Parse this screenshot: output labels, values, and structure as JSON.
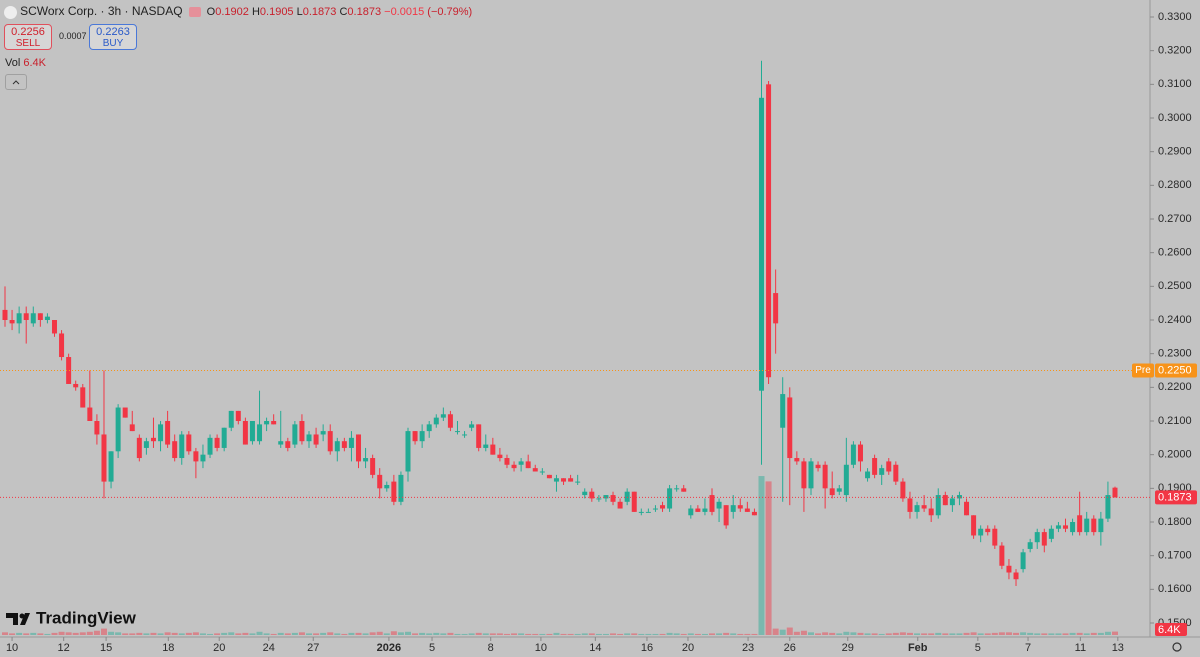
{
  "chart_data": {
    "type": "candlestick",
    "title": "SCWorx Corp. · 3h · NASDAQ",
    "ohlc_header": [
      {
        "label": "O",
        "value": 0.1902
      },
      {
        "label": "H",
        "value": 0.1905
      },
      {
        "label": "L",
        "value": 0.1873
      },
      {
        "label": "C",
        "value": 0.1873
      }
    ],
    "change": {
      "value": -0.0015,
      "label": "−0.0015"
    },
    "change_pct": {
      "value": -0.79,
      "label": "(−0.79%)"
    },
    "sell": {
      "value": 0.2256,
      "label": "SELL"
    },
    "spread": 0.0007,
    "buy": {
      "value": 0.2263,
      "label": "BUY"
    },
    "up_color": "#22ab94",
    "down_color": "#f23645",
    "candles": [
      [
        0.243,
        0.25,
        0.238,
        0.24
      ],
      [
        0.24,
        0.243,
        0.237,
        0.239
      ],
      [
        0.239,
        0.244,
        0.236,
        0.242
      ],
      [
        0.242,
        0.244,
        0.233,
        0.24
      ],
      [
        0.239,
        0.244,
        0.238,
        0.242
      ],
      [
        0.242,
        0.242,
        0.238,
        0.24
      ],
      [
        0.24,
        0.242,
        0.239,
        0.241
      ],
      [
        0.24,
        0.24,
        0.235,
        0.236
      ],
      [
        0.236,
        0.237,
        0.228,
        0.229
      ],
      [
        0.229,
        0.23,
        0.221,
        0.221
      ],
      [
        0.221,
        0.222,
        0.219,
        0.22
      ],
      [
        0.22,
        0.221,
        0.214,
        0.214
      ],
      [
        0.214,
        0.225,
        0.21,
        0.21
      ],
      [
        0.21,
        0.212,
        0.203,
        0.206
      ],
      [
        0.206,
        0.225,
        0.187,
        0.192
      ],
      [
        0.192,
        0.201,
        0.19,
        0.201
      ],
      [
        0.201,
        0.215,
        0.199,
        0.214
      ],
      [
        0.214,
        0.214,
        0.211,
        0.211
      ],
      [
        0.209,
        0.213,
        0.207,
        0.207
      ],
      [
        0.205,
        0.206,
        0.198,
        0.199
      ],
      [
        0.202,
        0.205,
        0.2,
        0.204
      ],
      [
        0.205,
        0.211,
        0.202,
        0.204
      ],
      [
        0.204,
        0.21,
        0.201,
        0.209
      ],
      [
        0.21,
        0.213,
        0.202,
        0.203
      ],
      [
        0.204,
        0.206,
        0.198,
        0.199
      ],
      [
        0.199,
        0.207,
        0.197,
        0.206
      ],
      [
        0.206,
        0.207,
        0.2,
        0.201
      ],
      [
        0.201,
        0.202,
        0.193,
        0.198
      ],
      [
        0.198,
        0.203,
        0.196,
        0.2
      ],
      [
        0.2,
        0.206,
        0.199,
        0.205
      ],
      [
        0.205,
        0.206,
        0.201,
        0.202
      ],
      [
        0.202,
        0.208,
        0.201,
        0.208
      ],
      [
        0.208,
        0.213,
        0.207,
        0.213
      ],
      [
        0.213,
        0.213,
        0.209,
        0.21
      ],
      [
        0.21,
        0.211,
        0.203,
        0.203
      ],
      [
        0.204,
        0.21,
        0.203,
        0.21
      ],
      [
        0.204,
        0.219,
        0.203,
        0.209
      ],
      [
        0.209,
        0.211,
        0.207,
        0.21
      ],
      [
        0.21,
        0.212,
        0.209,
        0.209
      ],
      [
        0.203,
        0.213,
        0.202,
        0.204
      ],
      [
        0.204,
        0.205,
        0.201,
        0.202
      ],
      [
        0.203,
        0.21,
        0.202,
        0.209
      ],
      [
        0.21,
        0.212,
        0.203,
        0.204
      ],
      [
        0.204,
        0.207,
        0.202,
        0.206
      ],
      [
        0.206,
        0.208,
        0.202,
        0.203
      ],
      [
        0.206,
        0.209,
        0.204,
        0.207
      ],
      [
        0.207,
        0.209,
        0.2,
        0.201
      ],
      [
        0.201,
        0.205,
        0.198,
        0.204
      ],
      [
        0.204,
        0.205,
        0.201,
        0.202
      ],
      [
        0.202,
        0.207,
        0.198,
        0.205
      ],
      [
        0.206,
        0.206,
        0.196,
        0.198
      ],
      [
        0.198,
        0.202,
        0.196,
        0.199
      ],
      [
        0.199,
        0.2,
        0.193,
        0.194
      ],
      [
        0.194,
        0.196,
        0.187,
        0.19
      ],
      [
        0.19,
        0.192,
        0.189,
        0.191
      ],
      [
        0.192,
        0.194,
        0.185,
        0.186
      ],
      [
        0.186,
        0.195,
        0.185,
        0.194
      ],
      [
        0.195,
        0.208,
        0.192,
        0.207
      ],
      [
        0.207,
        0.207,
        0.203,
        0.204
      ],
      [
        0.204,
        0.209,
        0.202,
        0.207
      ],
      [
        0.207,
        0.21,
        0.205,
        0.209
      ],
      [
        0.209,
        0.212,
        0.208,
        0.211
      ],
      [
        0.211,
        0.214,
        0.21,
        0.212
      ],
      [
        0.212,
        0.213,
        0.207,
        0.208
      ],
      [
        0.207,
        0.21,
        0.206,
        0.207
      ],
      [
        0.206,
        0.207,
        0.205,
        0.206
      ],
      [
        0.208,
        0.21,
        0.207,
        0.209
      ],
      [
        0.209,
        0.209,
        0.201,
        0.202
      ],
      [
        0.202,
        0.206,
        0.201,
        0.203
      ],
      [
        0.203,
        0.205,
        0.2,
        0.2
      ],
      [
        0.2,
        0.202,
        0.198,
        0.199
      ],
      [
        0.199,
        0.2,
        0.196,
        0.197
      ],
      [
        0.197,
        0.198,
        0.195,
        0.196
      ],
      [
        0.197,
        0.199,
        0.195,
        0.198
      ],
      [
        0.198,
        0.2,
        0.196,
        0.196
      ],
      [
        0.196,
        0.197,
        0.195,
        0.195
      ],
      [
        0.195,
        0.196,
        0.194,
        0.195
      ],
      [
        0.194,
        0.194,
        0.193,
        0.193
      ],
      [
        0.192,
        0.194,
        0.189,
        0.193
      ],
      [
        0.193,
        0.193,
        0.191,
        0.192
      ],
      [
        0.193,
        0.194,
        0.192,
        0.192
      ],
      [
        0.192,
        0.194,
        0.191,
        0.192
      ],
      [
        0.188,
        0.19,
        0.187,
        0.189
      ],
      [
        0.189,
        0.19,
        0.186,
        0.187
      ],
      [
        0.187,
        0.188,
        0.186,
        0.187
      ],
      [
        0.187,
        0.188,
        0.186,
        0.188
      ],
      [
        0.188,
        0.189,
        0.185,
        0.186
      ],
      [
        0.186,
        0.187,
        0.184,
        0.184
      ],
      [
        0.186,
        0.19,
        0.185,
        0.189
      ],
      [
        0.189,
        0.189,
        0.183,
        0.183
      ],
      [
        0.183,
        0.184,
        0.182,
        0.183
      ],
      [
        0.183,
        0.184,
        0.183,
        0.183
      ],
      [
        0.184,
        0.185,
        0.183,
        0.184
      ],
      [
        0.185,
        0.186,
        0.183,
        0.184
      ],
      [
        0.184,
        0.191,
        0.183,
        0.19
      ],
      [
        0.19,
        0.191,
        0.189,
        0.19
      ],
      [
        0.19,
        0.191,
        0.189,
        0.189
      ],
      [
        0.182,
        0.185,
        0.181,
        0.184
      ],
      [
        0.184,
        0.185,
        0.183,
        0.183
      ],
      [
        0.183,
        0.187,
        0.182,
        0.184
      ],
      [
        0.188,
        0.19,
        0.182,
        0.183
      ],
      [
        0.184,
        0.187,
        0.18,
        0.186
      ],
      [
        0.185,
        0.185,
        0.178,
        0.179
      ],
      [
        0.183,
        0.188,
        0.181,
        0.185
      ],
      [
        0.185,
        0.187,
        0.183,
        0.184
      ],
      [
        0.184,
        0.186,
        0.183,
        0.183
      ],
      [
        0.183,
        0.184,
        0.182,
        0.182
      ],
      [
        0.219,
        0.317,
        0.197,
        0.306
      ],
      [
        0.31,
        0.311,
        0.221,
        0.223
      ],
      [
        0.248,
        0.255,
        0.23,
        0.239
      ],
      [
        0.208,
        0.223,
        0.186,
        0.218
      ],
      [
        0.217,
        0.22,
        0.185,
        0.199
      ],
      [
        0.199,
        0.201,
        0.197,
        0.198
      ],
      [
        0.198,
        0.199,
        0.183,
        0.19
      ],
      [
        0.19,
        0.199,
        0.188,
        0.198
      ],
      [
        0.197,
        0.198,
        0.195,
        0.196
      ],
      [
        0.197,
        0.198,
        0.184,
        0.19
      ],
      [
        0.19,
        0.195,
        0.187,
        0.188
      ],
      [
        0.189,
        0.191,
        0.188,
        0.19
      ],
      [
        0.188,
        0.205,
        0.186,
        0.197
      ],
      [
        0.197,
        0.204,
        0.196,
        0.203
      ],
      [
        0.203,
        0.204,
        0.195,
        0.198
      ],
      [
        0.193,
        0.196,
        0.192,
        0.195
      ],
      [
        0.199,
        0.2,
        0.193,
        0.194
      ],
      [
        0.194,
        0.197,
        0.191,
        0.196
      ],
      [
        0.198,
        0.199,
        0.194,
        0.195
      ],
      [
        0.197,
        0.198,
        0.191,
        0.192
      ],
      [
        0.192,
        0.193,
        0.186,
        0.187
      ],
      [
        0.187,
        0.189,
        0.181,
        0.183
      ],
      [
        0.183,
        0.186,
        0.181,
        0.185
      ],
      [
        0.185,
        0.188,
        0.183,
        0.184
      ],
      [
        0.184,
        0.187,
        0.18,
        0.182
      ],
      [
        0.182,
        0.19,
        0.181,
        0.188
      ],
      [
        0.188,
        0.189,
        0.185,
        0.185
      ],
      [
        0.185,
        0.188,
        0.183,
        0.187
      ],
      [
        0.187,
        0.189,
        0.185,
        0.188
      ],
      [
        0.186,
        0.187,
        0.182,
        0.182
      ],
      [
        0.182,
        0.182,
        0.175,
        0.176
      ],
      [
        0.176,
        0.179,
        0.174,
        0.178
      ],
      [
        0.178,
        0.179,
        0.176,
        0.177
      ],
      [
        0.178,
        0.179,
        0.172,
        0.173
      ],
      [
        0.173,
        0.174,
        0.166,
        0.167
      ],
      [
        0.167,
        0.169,
        0.163,
        0.165
      ],
      [
        0.165,
        0.166,
        0.161,
        0.163
      ],
      [
        0.166,
        0.172,
        0.165,
        0.171
      ],
      [
        0.172,
        0.175,
        0.171,
        0.174
      ],
      [
        0.174,
        0.178,
        0.172,
        0.177
      ],
      [
        0.177,
        0.178,
        0.171,
        0.173
      ],
      [
        0.175,
        0.179,
        0.174,
        0.178
      ],
      [
        0.178,
        0.18,
        0.177,
        0.179
      ],
      [
        0.179,
        0.181,
        0.177,
        0.178
      ],
      [
        0.177,
        0.181,
        0.176,
        0.18
      ],
      [
        0.182,
        0.189,
        0.176,
        0.177
      ],
      [
        0.177,
        0.183,
        0.176,
        0.181
      ],
      [
        0.181,
        0.182,
        0.176,
        0.177
      ],
      [
        0.177,
        0.183,
        0.173,
        0.181
      ],
      [
        0.181,
        0.192,
        0.18,
        0.188
      ],
      [
        0.1902,
        0.1905,
        0.1873,
        0.1873
      ]
    ],
    "volume": {
      "name": "Vol",
      "last_label": "6.4K",
      "lim": [
        0,
        300
      ],
      "values": [
        5,
        3,
        4,
        3,
        4,
        3,
        2,
        4,
        6,
        5,
        4,
        5,
        6,
        8,
        12,
        6,
        5,
        3,
        3,
        4,
        3,
        4,
        3,
        5,
        4,
        3,
        4,
        5,
        3,
        2,
        3,
        4,
        5,
        3,
        4,
        3,
        6,
        3,
        2,
        4,
        3,
        4,
        5,
        3,
        3,
        4,
        5,
        3,
        2,
        4,
        4,
        3,
        5,
        6,
        3,
        7,
        5,
        6,
        3,
        4,
        3,
        4,
        3,
        4,
        2,
        2,
        3,
        4,
        3,
        3,
        3,
        2,
        3,
        3,
        2,
        2,
        2,
        2,
        4,
        2,
        2,
        2,
        3,
        3,
        2,
        2,
        3,
        2,
        3,
        3,
        2,
        2,
        2,
        2,
        4,
        3,
        2,
        3,
        2,
        2,
        3,
        3,
        4,
        3,
        2,
        2,
        2,
        298,
        288,
        12,
        10,
        14,
        6,
        8,
        5,
        3,
        5,
        4,
        3,
        6,
        5,
        4,
        3,
        3,
        2,
        3,
        4,
        5,
        4,
        3,
        3,
        3,
        4,
        3,
        3,
        3,
        4,
        5,
        3,
        3,
        4,
        5,
        5,
        4,
        5,
        4,
        3,
        3,
        3,
        3,
        3,
        4,
        4,
        3,
        4,
        4,
        6,
        6.4
      ]
    },
    "xlim": [
      0,
      157
    ],
    "xticks": [
      {
        "value": 1.0,
        "label": "10"
      },
      {
        "value": 8.3,
        "label": "12"
      },
      {
        "value": 14.3,
        "label": "15"
      },
      {
        "value": 23.1,
        "label": "18"
      },
      {
        "value": 30.3,
        "label": "20"
      },
      {
        "value": 37.3,
        "label": "24"
      },
      {
        "value": 43.6,
        "label": "27"
      },
      {
        "value": 54.3,
        "label": "2026"
      },
      {
        "value": 60.4,
        "label": "5"
      },
      {
        "value": 68.7,
        "label": "8"
      },
      {
        "value": 75.8,
        "label": "10"
      },
      {
        "value": 83.5,
        "label": "14"
      },
      {
        "value": 90.8,
        "label": "16"
      },
      {
        "value": 96.6,
        "label": "20"
      },
      {
        "value": 105.1,
        "label": "23"
      },
      {
        "value": 111.0,
        "label": "26"
      },
      {
        "value": 119.2,
        "label": "29"
      },
      {
        "value": 129.1,
        "label": "Feb"
      },
      {
        "value": 137.6,
        "label": "5"
      },
      {
        "value": 144.7,
        "label": "7"
      },
      {
        "value": 152.1,
        "label": "11"
      },
      {
        "value": 157.4,
        "label": "13"
      }
    ],
    "ylim": [
      0.15,
      0.33
    ],
    "yticks": [
      {
        "value": 0.15,
        "label": "0.1500"
      },
      {
        "value": 0.16,
        "label": "0.1600"
      },
      {
        "value": 0.17,
        "label": "0.1700"
      },
      {
        "value": 0.18,
        "label": "0.1800"
      },
      {
        "value": 0.19,
        "label": "0.1900"
      },
      {
        "value": 0.2,
        "label": "0.2000"
      },
      {
        "value": 0.21,
        "label": "0.2100"
      },
      {
        "value": 0.22,
        "label": "0.2200"
      },
      {
        "value": 0.23,
        "label": "0.2300"
      },
      {
        "value": 0.24,
        "label": "0.2400"
      },
      {
        "value": 0.25,
        "label": "0.2500"
      },
      {
        "value": 0.26,
        "label": "0.2600"
      },
      {
        "value": 0.27,
        "label": "0.2700"
      },
      {
        "value": 0.28,
        "label": "0.2800"
      },
      {
        "value": 0.29,
        "label": "0.2900"
      },
      {
        "value": 0.3,
        "label": "0.3000"
      },
      {
        "value": 0.31,
        "label": "0.3100"
      },
      {
        "value": 0.32,
        "label": "0.3200"
      },
      {
        "value": 0.33,
        "label": "0.3300"
      }
    ],
    "pre_market": {
      "label": "Pre",
      "value": 0.225,
      "value_label": "0.2250",
      "color": "#f7931a"
    },
    "last_price": {
      "value": 0.1873,
      "value_label": "0.1873",
      "color": "#f23645"
    },
    "branding": "TradingView"
  }
}
